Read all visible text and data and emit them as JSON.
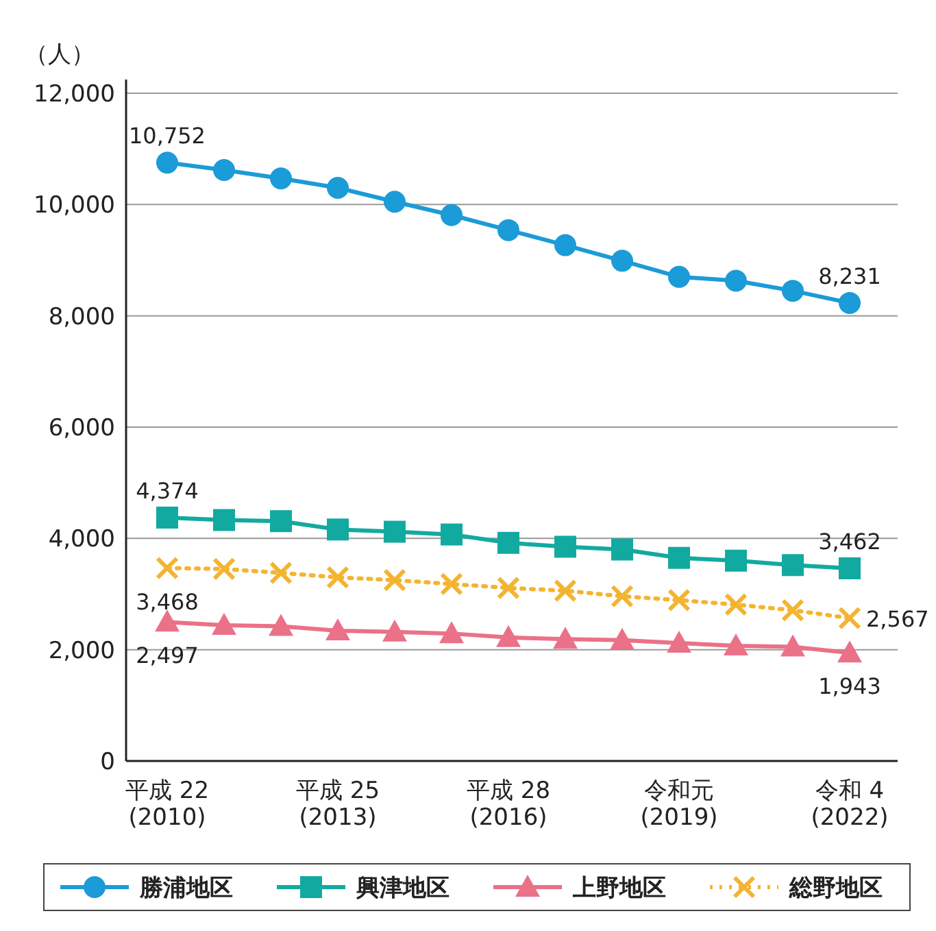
{
  "chart_data": {
    "type": "line",
    "ylabel": "（人）",
    "categories": [
      "平成 22\n(2010)",
      null,
      null,
      "平成 25\n(2013)",
      null,
      null,
      "平成 28\n(2016)",
      null,
      null,
      "令和元\n(2019)",
      null,
      null,
      "令和 4\n(2022)"
    ],
    "ylim": [
      0,
      12000
    ],
    "yticks": [
      {
        "value": 0,
        "label": "0"
      },
      {
        "value": 2000,
        "label": "2,000"
      },
      {
        "value": 4000,
        "label": "4,000"
      },
      {
        "value": 6000,
        "label": "6,000"
      },
      {
        "value": 8000,
        "label": "8,000"
      },
      {
        "value": 10000,
        "label": "10,000"
      },
      {
        "value": 12000,
        "label": "12,000"
      }
    ],
    "grid": "y",
    "legend": "bottom",
    "series": [
      {
        "name": "勝浦地区",
        "color": "#1b9bd7",
        "marker": "circle",
        "line_style": "solid",
        "values": [
          10752,
          10620,
          10470,
          10300,
          10050,
          9810,
          9540,
          9270,
          8990,
          8700,
          8630,
          8450,
          8231
        ],
        "value_labels": [
          "10,752",
          null,
          null,
          null,
          null,
          null,
          null,
          null,
          null,
          null,
          null,
          null,
          "8,231"
        ]
      },
      {
        "name": "興津地区",
        "color": "#12aaa0",
        "marker": "square",
        "line_style": "solid",
        "values": [
          4374,
          4330,
          4310,
          4160,
          4120,
          4070,
          3920,
          3850,
          3800,
          3650,
          3600,
          3520,
          3462
        ],
        "value_labels": [
          "4,374",
          null,
          null,
          null,
          null,
          null,
          null,
          null,
          null,
          null,
          null,
          null,
          "3,462"
        ]
      },
      {
        "name": "上野地区",
        "color": "#ea7188",
        "marker": "triangle",
        "line_style": "solid",
        "values": [
          2497,
          2440,
          2420,
          2340,
          2320,
          2290,
          2220,
          2190,
          2170,
          2120,
          2070,
          2050,
          1943
        ],
        "value_labels": [
          "2,497",
          null,
          null,
          null,
          null,
          null,
          null,
          null,
          null,
          null,
          null,
          null,
          "1,943"
        ]
      },
      {
        "name": "総野地区",
        "color": "#f4b431",
        "marker": "cross",
        "line_style": "dotted",
        "values": [
          3468,
          3450,
          3380,
          3300,
          3250,
          3180,
          3110,
          3060,
          2960,
          2890,
          2810,
          2710,
          2567
        ],
        "value_labels": [
          "3,468",
          null,
          null,
          null,
          null,
          null,
          null,
          null,
          null,
          null,
          null,
          null,
          "2,567"
        ]
      }
    ]
  }
}
